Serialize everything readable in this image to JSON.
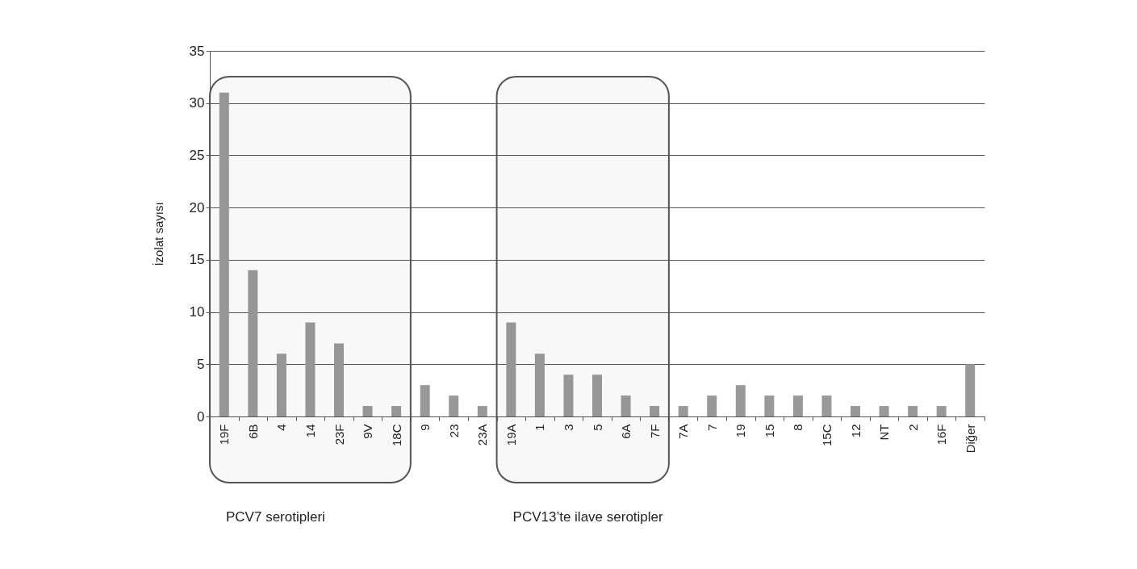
{
  "chart_data": {
    "type": "bar",
    "ylabel": "İzolat sayısı",
    "categories": [
      "19F",
      "6B",
      "4",
      "14",
      "23F",
      "9V",
      "18C",
      "9",
      "23",
      "23A",
      "19A",
      "1",
      "3",
      "5",
      "6A",
      "7F",
      "7A",
      "7",
      "19",
      "15",
      "8",
      "15C",
      "12",
      "NT",
      "2",
      "16F",
      "Diğer"
    ],
    "values": [
      31,
      14,
      6,
      9,
      7,
      1,
      1,
      3,
      2,
      1,
      9,
      6,
      4,
      4,
      2,
      1,
      1,
      2,
      3,
      2,
      2,
      2,
      1,
      1,
      1,
      1,
      5
    ],
    "color": "#999999",
    "ylim": [
      0,
      35
    ],
    "yticks": [
      0,
      5,
      10,
      15,
      20,
      25,
      30,
      35
    ],
    "grid": "y",
    "bands": [
      {
        "axis": "x",
        "from": "19F",
        "to": "18C",
        "label": "PCV7 serotipleri"
      },
      {
        "axis": "x",
        "from": "19A",
        "to": "7F",
        "label": "PCV13’te ilave serotipler"
      }
    ]
  }
}
